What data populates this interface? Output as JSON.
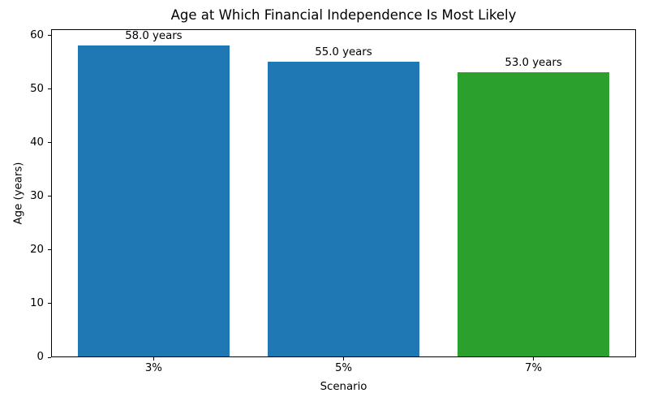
{
  "chart_data": {
    "type": "bar",
    "title": "Age at Which Financial Independence Is Most Likely",
    "xlabel": "Scenario",
    "ylabel": "Age (years)",
    "categories": [
      "3%",
      "5%",
      "7%"
    ],
    "values": [
      58.0,
      55.0,
      53.0
    ],
    "bar_labels": [
      "58.0 years",
      "55.0 years",
      "53.0 years"
    ],
    "bar_colors": [
      "#1f77b4",
      "#1f77b4",
      "#2ca02c"
    ],
    "yticks": [
      0,
      10,
      20,
      30,
      40,
      50,
      60
    ],
    "ylim": [
      0,
      61.2
    ],
    "grid": false,
    "legend_position": "none",
    "background_color": "#ffffff",
    "axis_color": "#000000",
    "bar_width_fraction": 0.8
  }
}
